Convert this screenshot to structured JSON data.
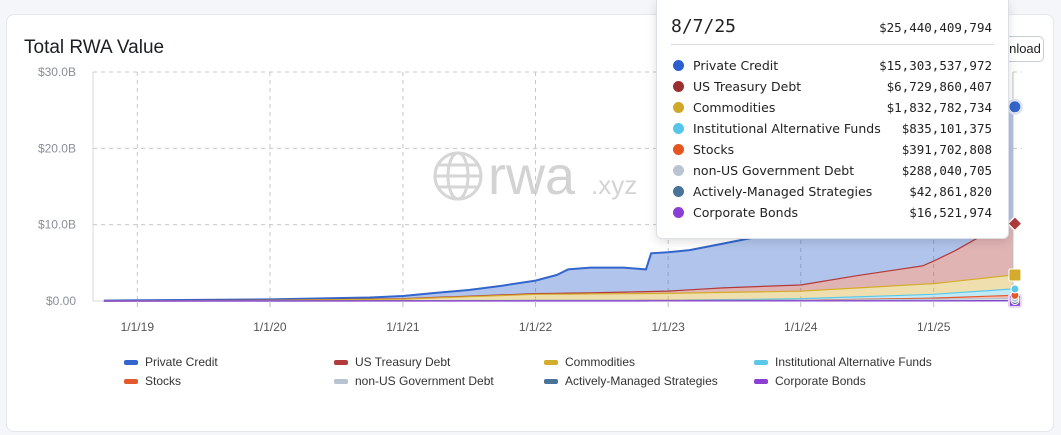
{
  "header": {
    "title": "Total RWA Value",
    "download_label": "Download"
  },
  "watermark": {
    "text": "rwa",
    "suffix": ".xyz",
    "icon": "globe-icon"
  },
  "chart_data": {
    "type": "area",
    "stacked": true,
    "x_ticks": [
      "1/1/19",
      "1/1/20",
      "1/1/21",
      "1/1/22",
      "1/1/23",
      "1/1/24",
      "1/1/25"
    ],
    "y_ticks": [
      "$0.00",
      "$10.0B",
      "$20.0B",
      "$30.0B"
    ],
    "ylim": [
      0,
      30000000000
    ],
    "xlim": [
      "2018-09-01",
      "2025-09-01"
    ],
    "grid": true,
    "legend_position": "bottom",
    "series": [
      {
        "name": "Private Credit",
        "color": "#3366cc",
        "points": [
          [
            "2018-10-01",
            0.05
          ],
          [
            "2020-01-01",
            0.1
          ],
          [
            "2020-10-01",
            0.2
          ],
          [
            "2021-01-01",
            0.35
          ],
          [
            "2021-04-01",
            0.6
          ],
          [
            "2021-07-01",
            0.8
          ],
          [
            "2021-10-01",
            1.2
          ],
          [
            "2022-01-01",
            1.7
          ],
          [
            "2022-03-01",
            2.4
          ],
          [
            "2022-04-01",
            3.1
          ],
          [
            "2022-06-01",
            3.3
          ],
          [
            "2022-09-01",
            3.2
          ],
          [
            "2022-11-01",
            2.9
          ],
          [
            "2022-11-15",
            5.0
          ],
          [
            "2023-03-01",
            5.2
          ],
          [
            "2023-06-01",
            5.8
          ],
          [
            "2023-09-01",
            6.5
          ],
          [
            "2023-12-01",
            7.4
          ],
          [
            "2024-03-01",
            8.0
          ],
          [
            "2024-06-01",
            8.5
          ],
          [
            "2024-09-01",
            9.0
          ],
          [
            "2024-12-01",
            9.6
          ],
          [
            "2025-03-01",
            11.0
          ],
          [
            "2025-06-01",
            13.5
          ],
          [
            "2025-08-07",
            15.3
          ]
        ]
      },
      {
        "name": "US Treasury Debt",
        "color": "#b13a3a",
        "points": [
          [
            "2018-10-01",
            0
          ],
          [
            "2021-01-01",
            0.05
          ],
          [
            "2022-01-01",
            0.1
          ],
          [
            "2022-06-01",
            0.15
          ],
          [
            "2023-01-01",
            0.3
          ],
          [
            "2023-06-01",
            0.6
          ],
          [
            "2024-01-01",
            0.8
          ],
          [
            "2024-06-01",
            1.6
          ],
          [
            "2024-12-01",
            2.4
          ],
          [
            "2025-03-01",
            4.0
          ],
          [
            "2025-06-01",
            6.0
          ],
          [
            "2025-08-07",
            6.73
          ]
        ]
      },
      {
        "name": "Commodities",
        "color": "#d4ac2b",
        "points": [
          [
            "2018-10-01",
            0
          ],
          [
            "2020-01-01",
            0.05
          ],
          [
            "2021-01-01",
            0.2
          ],
          [
            "2022-01-01",
            0.8
          ],
          [
            "2023-01-01",
            0.9
          ],
          [
            "2024-01-01",
            1.0
          ],
          [
            "2025-01-01",
            1.4
          ],
          [
            "2025-08-07",
            1.83
          ]
        ]
      },
      {
        "name": "Institutional Alternative Funds",
        "color": "#5bc8e8",
        "points": [
          [
            "2018-10-01",
            0
          ],
          [
            "2023-01-01",
            0.02
          ],
          [
            "2024-01-01",
            0.2
          ],
          [
            "2025-01-01",
            0.5
          ],
          [
            "2025-08-07",
            0.84
          ]
        ]
      },
      {
        "name": "Stocks",
        "color": "#e3592e",
        "points": [
          [
            "2018-10-01",
            0
          ],
          [
            "2024-01-01",
            0.02
          ],
          [
            "2025-01-01",
            0.15
          ],
          [
            "2025-08-07",
            0.39
          ]
        ]
      },
      {
        "name": "non-US Government Debt",
        "color": "#b7c3d1",
        "points": [
          [
            "2018-10-01",
            0
          ],
          [
            "2024-01-01",
            0.05
          ],
          [
            "2025-01-01",
            0.2
          ],
          [
            "2025-08-07",
            0.29
          ]
        ]
      },
      {
        "name": "Actively-Managed Strategies",
        "color": "#4a7399",
        "points": [
          [
            "2018-10-01",
            0
          ],
          [
            "2025-01-01",
            0.02
          ],
          [
            "2025-08-07",
            0.04
          ]
        ]
      },
      {
        "name": "Corporate Bonds",
        "color": "#8d3fd4",
        "points": [
          [
            "2018-10-01",
            0
          ],
          [
            "2025-01-01",
            0.01
          ],
          [
            "2025-08-07",
            0.02
          ]
        ]
      }
    ],
    "hover_date": "2025-08-07"
  },
  "tooltip": {
    "date": "8/7/25",
    "total": "$25,440,409,794",
    "rows": [
      {
        "name": "Private Credit",
        "value": "$15,303,537,972",
        "color": "#2c5ecf"
      },
      {
        "name": "US Treasury Debt",
        "value": "$6,729,860,407",
        "color": "#9c2f2f"
      },
      {
        "name": "Commodities",
        "value": "$1,832,782,734",
        "color": "#cfa82a"
      },
      {
        "name": "Institutional Alternative Funds",
        "value": "$835,101,375",
        "color": "#55c6ea"
      },
      {
        "name": "Stocks",
        "value": "$391,702,808",
        "color": "#e65520"
      },
      {
        "name": "non-US Government Debt",
        "value": "$288,040,705",
        "color": "#b9c4d1"
      },
      {
        "name": "Actively-Managed Strategies",
        "value": "$42,861,820",
        "color": "#4a7399"
      },
      {
        "name": "Corporate Bonds",
        "value": "$16,521,974",
        "color": "#8a3fd6"
      }
    ]
  }
}
